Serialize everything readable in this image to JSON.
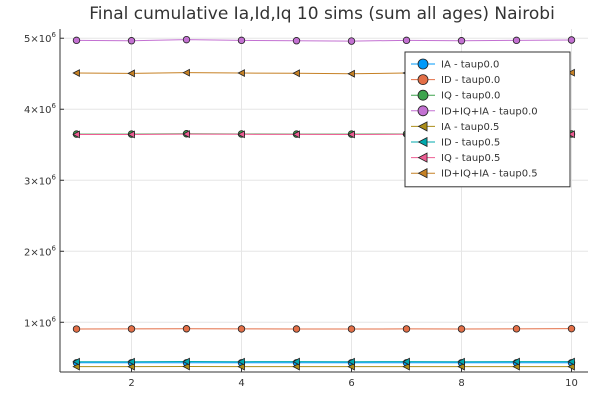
{
  "chart_data": {
    "type": "line",
    "title": "Final cumulative Ia,Id,Iq 10 sims (sum all ages) Nairobi",
    "xlabel": "",
    "ylabel": "",
    "xlim": [
      0.7,
      10.3
    ],
    "ylim": [
      300000,
      5130000
    ],
    "x": [
      1,
      2,
      3,
      4,
      5,
      6,
      7,
      8,
      9,
      10
    ],
    "xticks": [
      2,
      4,
      6,
      8,
      10
    ],
    "xtick_labels": [
      "2",
      "4",
      "6",
      "8",
      "10"
    ],
    "yticks": [
      1000000,
      2000000,
      3000000,
      4000000,
      5000000
    ],
    "ytick_labels": [
      {
        "mantissa": "1",
        "base": "×10",
        "exp": "6"
      },
      {
        "mantissa": "2",
        "base": "×10",
        "exp": "6"
      },
      {
        "mantissa": "3",
        "base": "×10",
        "exp": "6"
      },
      {
        "mantissa": "4",
        "base": "×10",
        "exp": "6"
      },
      {
        "mantissa": "5",
        "base": "×10",
        "exp": "6"
      }
    ],
    "grid": true,
    "legend_position": "top-right",
    "series": [
      {
        "name": "IA - taup0.0",
        "color": "#009AFA",
        "marker": "circle",
        "values": [
          430000,
          430000,
          430000,
          430000,
          430000,
          430000,
          430000,
          430000,
          430000,
          430000
        ]
      },
      {
        "name": "ID - taup0.0",
        "color": "#E36F47",
        "marker": "circle",
        "values": [
          905000,
          907000,
          909000,
          907000,
          906000,
          905000,
          907000,
          906000,
          908000,
          910000
        ]
      },
      {
        "name": "IQ - taup0.0",
        "color": "#3EA44E",
        "marker": "circle",
        "values": [
          3650000,
          3650000,
          3655000,
          3652000,
          3650000,
          3650000,
          3652000,
          3650000,
          3652000,
          3652000
        ]
      },
      {
        "name": "ID+IQ+IA - taup0.0",
        "color": "#C371D2",
        "marker": "circle",
        "values": [
          4970000,
          4965000,
          4980000,
          4970000,
          4965000,
          4960000,
          4970000,
          4965000,
          4970000,
          4975000
        ]
      },
      {
        "name": "IA - taup0.5",
        "color": "#AC8D18",
        "marker": "triangle-left",
        "values": [
          375000,
          375000,
          377000,
          375000,
          376000,
          375000,
          375000,
          376000,
          375000,
          375000
        ]
      },
      {
        "name": "ID - taup0.5",
        "color": "#00A9AD",
        "marker": "triangle-left",
        "values": [
          445000,
          445000,
          447000,
          445000,
          446000,
          445000,
          446000,
          445000,
          446000,
          446000
        ]
      },
      {
        "name": "IQ - taup0.5",
        "color": "#ED5E93",
        "marker": "triangle-left",
        "values": [
          3645000,
          3645000,
          3650000,
          3647000,
          3646000,
          3645000,
          3647000,
          3646000,
          3647000,
          3648000
        ]
      },
      {
        "name": "ID+IQ+IA - taup0.5",
        "color": "#C68125",
        "marker": "triangle-left",
        "values": [
          4510000,
          4505000,
          4515000,
          4510000,
          4507000,
          4500000,
          4510000,
          4505000,
          4510000,
          4515000
        ]
      }
    ]
  }
}
